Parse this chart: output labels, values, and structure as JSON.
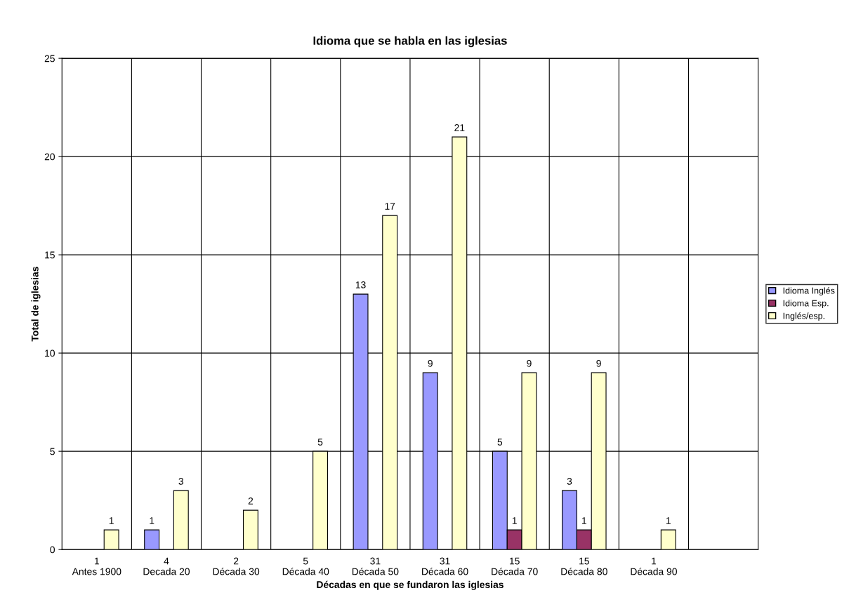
{
  "chart_data": {
    "type": "bar",
    "title": "Idioma que se habla en las iglesias",
    "xlabel": "Décadas en que se fundaron las iglesias",
    "ylabel": "Total de iglesias",
    "categories": [
      "1\nAntes 1900",
      "4\nDecada 20",
      "2\nDécada 30",
      "5\nDécada 40",
      "31\nDécada 50",
      "31\nDécada 60",
      "15\nDécada 70",
      "15\nDécada 80",
      "1\nDécada 90",
      null
    ],
    "series": [
      {
        "name": "Idioma Inglés",
        "color": "#9999ff",
        "values": [
          null,
          1,
          null,
          null,
          13,
          9,
          5,
          3,
          null,
          null
        ]
      },
      {
        "name": "Idioma Esp.",
        "color": "#993366",
        "values": [
          null,
          null,
          null,
          null,
          null,
          null,
          1,
          1,
          null,
          null
        ]
      },
      {
        "name": "Inglés/esp.",
        "color": "#ffffcc",
        "values": [
          1,
          3,
          2,
          5,
          17,
          21,
          9,
          9,
          1,
          null
        ]
      }
    ],
    "ylim": [
      0,
      25
    ],
    "yticks": [
      0,
      5,
      10,
      15,
      20,
      25
    ],
    "grid": true,
    "legend": "right",
    "data_labels": true
  }
}
